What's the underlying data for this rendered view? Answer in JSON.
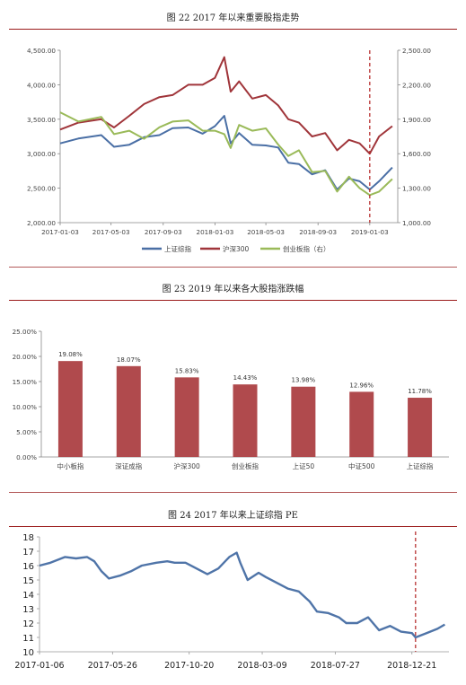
{
  "figures": {
    "fig22": {
      "title": "图 22   2017 年以来重要股指走势"
    },
    "fig23": {
      "title": "图 23   2019 年以来各大股指涨跌幅"
    },
    "fig24": {
      "title": "图 24   2017 年以来上证综指 PE"
    }
  },
  "colors": {
    "rule": "#9b1b1b",
    "sh": "#4a6fa5",
    "hs300": "#a0353a",
    "cyb": "#9aba59",
    "bar": "#b04a4d",
    "pe": "#4f74a8",
    "marker": "#b22222"
  },
  "chart_data": [
    {
      "type": "line",
      "x_ticks": [
        "2017-01-03",
        "2017-05-03",
        "2017-09-03",
        "2018-01-03",
        "2018-05-03",
        "2018-09-03",
        "2019-01-03"
      ],
      "y_left_ticks": [
        "2,000.00",
        "2,500.00",
        "3,000.00",
        "3,500.00",
        "4,000.00",
        "4,500.00"
      ],
      "y_right_ticks": [
        "1,000.00",
        "1,300.00",
        "1,600.00",
        "1,900.00",
        "2,200.00",
        "2,500.00"
      ],
      "ylim_left": [
        2000,
        4500
      ],
      "ylim_right": [
        1000,
        2500
      ],
      "marker_date": "2019-01-03",
      "grid": false,
      "legend_position": "bottom",
      "series": [
        {
          "name": "上证综指",
          "axis": "left",
          "dates": [
            "2017-01-03",
            "2017-02-15",
            "2017-04-10",
            "2017-05-10",
            "2017-06-15",
            "2017-07-20",
            "2017-08-25",
            "2017-09-25",
            "2017-11-01",
            "2017-12-05",
            "2018-01-03",
            "2018-01-25",
            "2018-02-09",
            "2018-03-01",
            "2018-04-01",
            "2018-05-03",
            "2018-06-01",
            "2018-06-25",
            "2018-07-20",
            "2018-08-20",
            "2018-09-20",
            "2018-10-18",
            "2018-11-15",
            "2018-12-10",
            "2019-01-03",
            "2019-01-25",
            "2019-02-25"
          ],
          "values": [
            3150,
            3220,
            3270,
            3100,
            3130,
            3240,
            3270,
            3370,
            3380,
            3290,
            3400,
            3550,
            3150,
            3300,
            3130,
            3120,
            3090,
            2870,
            2850,
            2700,
            2760,
            2480,
            2640,
            2600,
            2480,
            2600,
            2800
          ]
        },
        {
          "name": "沪深300",
          "axis": "left",
          "dates": [
            "2017-01-03",
            "2017-02-15",
            "2017-04-10",
            "2017-05-10",
            "2017-06-15",
            "2017-07-20",
            "2017-08-25",
            "2017-09-25",
            "2017-11-01",
            "2017-12-05",
            "2018-01-03",
            "2018-01-25",
            "2018-02-09",
            "2018-03-01",
            "2018-04-01",
            "2018-05-03",
            "2018-06-01",
            "2018-06-25",
            "2018-07-20",
            "2018-08-20",
            "2018-09-20",
            "2018-10-18",
            "2018-11-15",
            "2018-12-10",
            "2019-01-03",
            "2019-01-25",
            "2019-02-25"
          ],
          "values": [
            3350,
            3450,
            3500,
            3380,
            3550,
            3720,
            3820,
            3850,
            4000,
            4000,
            4100,
            4400,
            3900,
            4050,
            3800,
            3850,
            3700,
            3500,
            3450,
            3250,
            3300,
            3050,
            3200,
            3150,
            3000,
            3250,
            3400
          ]
        },
        {
          "name": "创业板指（右）",
          "axis": "right",
          "dates": [
            "2017-01-03",
            "2017-02-15",
            "2017-04-10",
            "2017-05-10",
            "2017-06-15",
            "2017-07-20",
            "2017-08-25",
            "2017-09-25",
            "2017-11-01",
            "2017-12-05",
            "2018-01-03",
            "2018-01-25",
            "2018-02-09",
            "2018-03-01",
            "2018-04-01",
            "2018-05-03",
            "2018-06-01",
            "2018-06-25",
            "2018-07-20",
            "2018-08-20",
            "2018-09-20",
            "2018-10-18",
            "2018-11-15",
            "2018-12-10",
            "2019-01-03",
            "2019-01-25",
            "2019-02-25"
          ],
          "values": [
            1960,
            1880,
            1920,
            1770,
            1800,
            1730,
            1830,
            1880,
            1890,
            1800,
            1800,
            1770,
            1650,
            1850,
            1800,
            1820,
            1680,
            1580,
            1630,
            1440,
            1450,
            1270,
            1400,
            1300,
            1240,
            1270,
            1380
          ]
        }
      ]
    },
    {
      "type": "bar",
      "categories": [
        "中小板指",
        "深证成指",
        "沪深300",
        "创业板指",
        "上证50",
        "中证500",
        "上证综指"
      ],
      "values": [
        19.08,
        18.07,
        15.83,
        14.43,
        13.98,
        12.96,
        11.78
      ],
      "data_labels": [
        "19.08%",
        "18.07%",
        "15.83%",
        "14.43%",
        "13.98%",
        "12.96%",
        "11.78%"
      ],
      "y_ticks": [
        "0.00%",
        "5.00%",
        "10.00%",
        "15.00%",
        "20.00%",
        "25.00%"
      ],
      "ylim": [
        0,
        25
      ],
      "grid": false
    },
    {
      "type": "line",
      "x_ticks": [
        "2017-01-06",
        "2017-05-26",
        "2017-10-20",
        "2018-03-09",
        "2018-07-27",
        "2018-12-21"
      ],
      "y_ticks": [
        "10",
        "11",
        "12",
        "13",
        "14",
        "15",
        "16",
        "17",
        "18"
      ],
      "ylim": [
        10,
        18
      ],
      "marker_date": "2018-12-28",
      "grid": false,
      "series": [
        {
          "dates": [
            "2017-01-06",
            "2017-01-27",
            "2017-02-24",
            "2017-03-17",
            "2017-04-07",
            "2017-04-21",
            "2017-05-05",
            "2017-05-19",
            "2017-06-09",
            "2017-06-30",
            "2017-07-21",
            "2017-08-18",
            "2017-09-08",
            "2017-09-22",
            "2017-10-13",
            "2017-11-03",
            "2017-11-24",
            "2017-12-15",
            "2018-01-05",
            "2018-01-19",
            "2018-01-26",
            "2018-02-09",
            "2018-03-02",
            "2018-03-16",
            "2018-04-06",
            "2018-04-27",
            "2018-05-18",
            "2018-06-08",
            "2018-06-22",
            "2018-07-13",
            "2018-08-03",
            "2018-08-17",
            "2018-09-07",
            "2018-09-28",
            "2018-10-19",
            "2018-11-09",
            "2018-11-30",
            "2018-12-21",
            "2018-12-28",
            "2019-01-18",
            "2019-02-08",
            "2019-02-22"
          ],
          "values": [
            16.0,
            16.2,
            16.6,
            16.5,
            16.6,
            16.3,
            15.6,
            15.1,
            15.3,
            15.6,
            16.0,
            16.2,
            16.3,
            16.2,
            16.2,
            15.8,
            15.4,
            15.8,
            16.6,
            16.9,
            16.2,
            15.0,
            15.5,
            15.2,
            14.8,
            14.4,
            14.2,
            13.5,
            12.8,
            12.7,
            12.4,
            12.0,
            12.0,
            12.4,
            11.5,
            11.8,
            11.4,
            11.3,
            11.0,
            11.3,
            11.6,
            11.9
          ]
        }
      ]
    }
  ]
}
